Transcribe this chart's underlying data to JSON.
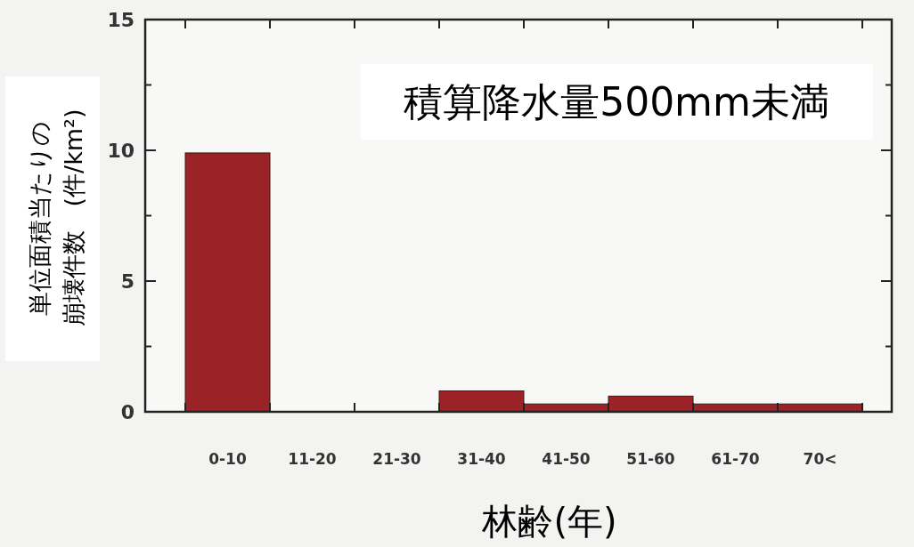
{
  "chart_data": {
    "type": "bar",
    "xlabel": "林齢(年)",
    "ylabel": "単位面積当たりの崩壊件数　(件/km²)",
    "annotations": [
      "積算降水量500mm未満"
    ],
    "categories": [
      "0-10",
      "11-20",
      "21-30",
      "31-40",
      "41-50",
      "51-60",
      "61-70",
      "70<"
    ],
    "values": [
      9.9,
      0,
      0,
      0.8,
      0.3,
      0.6,
      0.3,
      0.3
    ],
    "color": "#9b2226",
    "ylim": [
      0,
      15
    ],
    "yticks": [
      0,
      {
        "value": 2.5,
        "label": null
      },
      5,
      {
        "value": 7.5,
        "label": null
      },
      10,
      {
        "value": 12.5,
        "label": null
      },
      15
    ],
    "grid": false
  }
}
